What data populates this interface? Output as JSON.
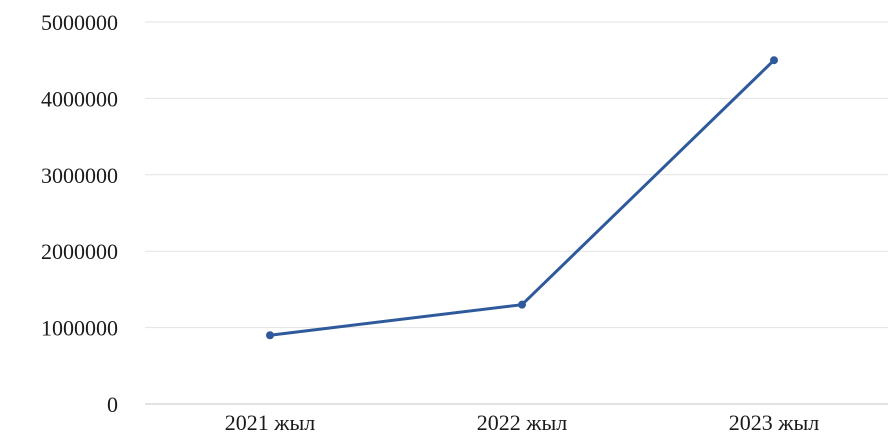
{
  "chart_data": {
    "type": "line",
    "title": "",
    "xlabel": "",
    "ylabel": "",
    "categories": [
      "2021 жыл",
      "2022 жыл",
      "2023 жыл"
    ],
    "series": [
      {
        "values": [
          900000,
          1300000,
          4500000
        ],
        "color": "#2e5a9c"
      }
    ],
    "ylim": [
      0,
      5000000
    ],
    "yticks": [
      0,
      1000000,
      2000000,
      3000000,
      4000000,
      5000000
    ],
    "ytick_labels": [
      "0",
      "1000000",
      "2000000",
      "3000000",
      "4000000",
      "5000000"
    ],
    "grid": true,
    "legend": "none"
  }
}
